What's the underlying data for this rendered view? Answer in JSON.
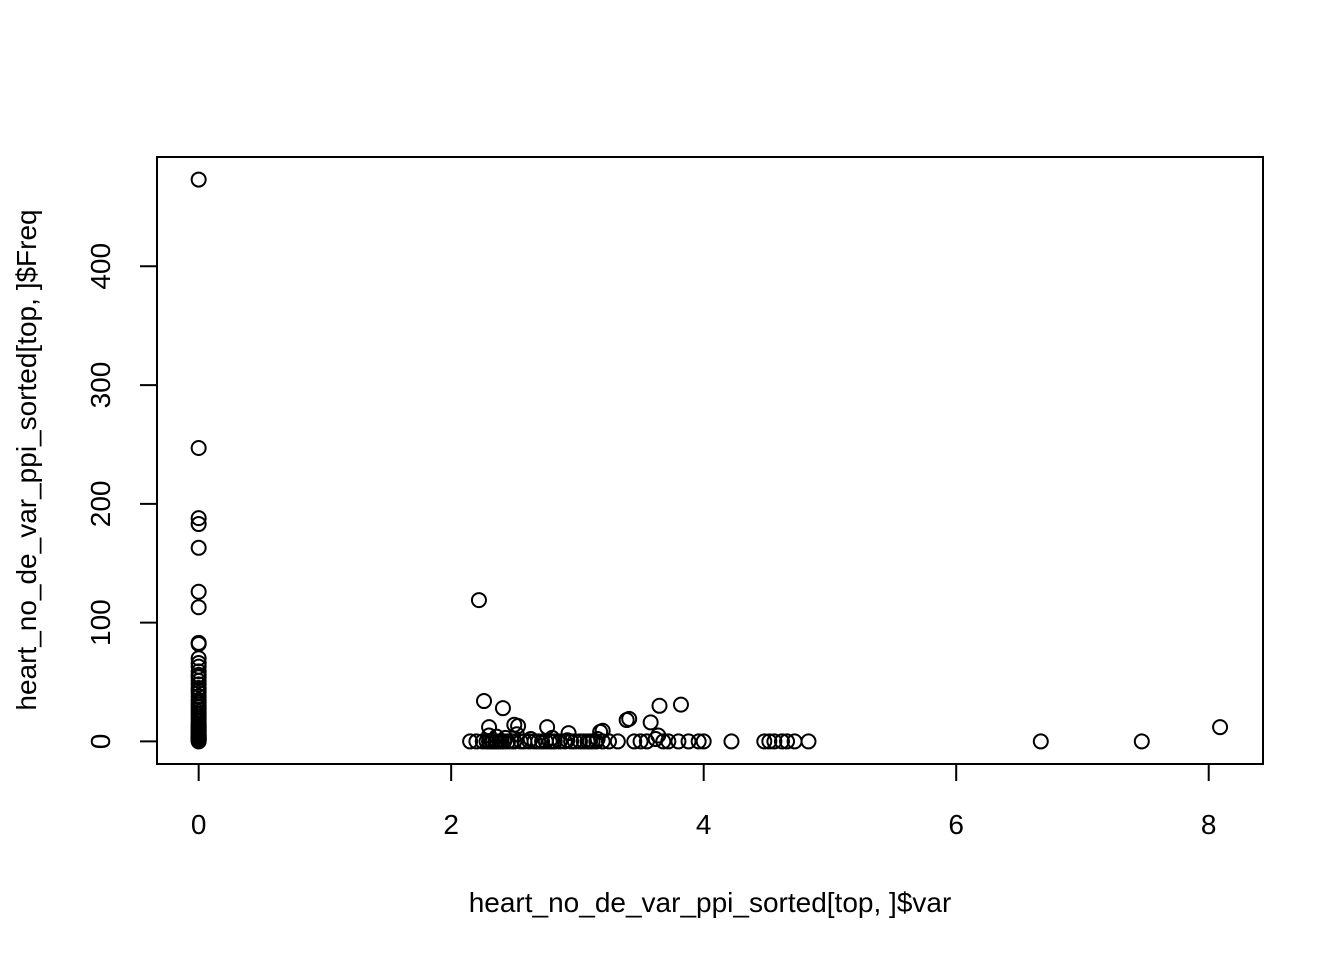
{
  "chart_data": {
    "type": "scatter",
    "title": "",
    "xlabel": "heart_no_de_var_ppi_sorted[top, ]$var",
    "ylabel": "heart_no_de_var_ppi_sorted[top, ]$Freq",
    "xlim": [
      -0.33,
      8.43
    ],
    "ylim": [
      -19,
      492
    ],
    "xticks": [
      0,
      2,
      4,
      6,
      8
    ],
    "yticks": [
      0,
      100,
      200,
      300,
      400
    ],
    "grid": false,
    "legend": "none",
    "series": [
      {
        "x": [
          0,
          0,
          0,
          0,
          0,
          0,
          0,
          0,
          0,
          0,
          0,
          0,
          0,
          0,
          0,
          0,
          0,
          0,
          0,
          0,
          0,
          0,
          0,
          0,
          0,
          0,
          0,
          0,
          0,
          0,
          0,
          0,
          0,
          0,
          0,
          0,
          0,
          0,
          0,
          0,
          0,
          0,
          0,
          0,
          0,
          0,
          0,
          0,
          0,
          0,
          0,
          2.22,
          2.26,
          2.3,
          2.41,
          2.5,
          2.53,
          2.76,
          2.93,
          3.18,
          3.2,
          3.39,
          3.41,
          3.58,
          3.65,
          3.64,
          3.82,
          2.15,
          2.2,
          2.25,
          2.28,
          2.3,
          2.32,
          2.33,
          2.35,
          2.36,
          2.38,
          2.4,
          2.42,
          2.45,
          2.48,
          2.5,
          2.55,
          2.58,
          2.62,
          2.66,
          2.69,
          2.72,
          2.75,
          2.78,
          2.8,
          2.82,
          2.86,
          2.9,
          2.95,
          2.98,
          3.02,
          3.05,
          3.08,
          3.1,
          3.12,
          3.15,
          3.2,
          3.25,
          3.32,
          3.45,
          3.5,
          3.55,
          3.68,
          3.72,
          3.8,
          3.88,
          3.96,
          4,
          4.22,
          4.48,
          4.52,
          4.56,
          4.62,
          4.66,
          4.72,
          4.83,
          6.67,
          7.47,
          2.3,
          2.36,
          2.43,
          2.52,
          2.63,
          2.8,
          2.92,
          3.16,
          3.62,
          8.09
        ],
        "y": [
          473,
          247,
          188,
          183,
          163,
          126,
          113,
          83,
          82,
          70,
          66,
          63,
          59,
          56,
          54,
          51,
          48,
          45,
          43,
          41,
          38,
          35,
          33,
          31,
          29,
          27,
          25,
          23,
          21,
          19,
          17,
          15,
          14,
          13,
          12,
          11,
          10,
          9,
          8,
          7,
          6,
          5,
          5,
          4,
          3,
          3,
          2,
          2,
          1,
          1,
          0,
          119,
          34,
          12,
          28,
          14,
          13,
          12,
          7,
          8,
          9,
          18,
          19,
          16,
          30,
          5,
          31,
          0,
          0,
          0,
          0,
          0,
          0,
          0,
          0,
          0,
          0,
          0,
          0,
          0,
          0,
          0,
          0,
          0,
          0,
          0,
          0,
          0,
          0,
          0,
          0,
          0,
          0,
          0,
          0,
          0,
          0,
          0,
          0,
          0,
          0,
          0,
          0,
          0,
          0,
          0,
          0,
          0,
          0,
          0,
          0,
          0,
          0,
          0,
          0,
          0,
          0,
          0,
          0,
          0,
          0,
          0,
          0,
          0,
          5,
          4,
          3,
          6,
          2,
          3,
          1,
          2,
          2,
          12
        ]
      }
    ]
  }
}
